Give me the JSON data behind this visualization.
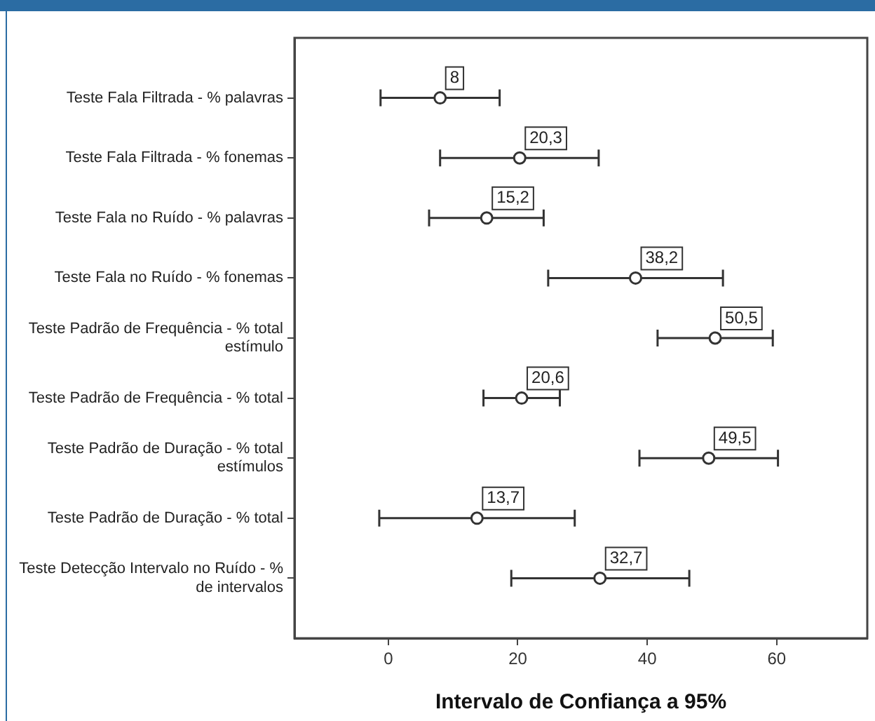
{
  "chart_data": {
    "type": "scatter",
    "xlabel": "Intervalo de Confiança a 95%",
    "categories": [
      "Teste Fala Filtrada - % palavras",
      "Teste Fala Filtrada - % fonemas",
      "Teste Fala no Ruído - % palavras",
      "Teste Fala no Ruído - % fonemas",
      "Teste Padrão de Frequência - % total estímulo",
      "Teste Padrão de Frequência - % total",
      "Teste Padrão de Duração - % total estímulos",
      "Teste Padrão de Duração - % total",
      "Teste Detecção Intervalo no Ruído - % de intervalos"
    ],
    "values": [
      8,
      20.3,
      15.2,
      38.2,
      50.5,
      20.6,
      49.5,
      13.7,
      32.7
    ],
    "value_labels": [
      "8",
      "20,3",
      "15,2",
      "38,2",
      "50,5",
      "20,6",
      "49,5",
      "13,7",
      "32,7"
    ],
    "errors": [
      [
        -1.2,
        17.2
      ],
      [
        8,
        32.5
      ],
      [
        6.3,
        24
      ],
      [
        24.7,
        51.7
      ],
      [
        41.6,
        59.4
      ],
      [
        14.7,
        26.5
      ],
      [
        38.8,
        60.2
      ],
      [
        -1.4,
        28.8
      ],
      [
        19,
        46.5
      ]
    ],
    "color": "#333333",
    "orientation": "horizontal",
    "marker": "circle",
    "xlim": [
      -14.5,
      74
    ],
    "xticks": [
      0,
      20,
      40,
      60
    ],
    "grid": false,
    "legend": false
  }
}
